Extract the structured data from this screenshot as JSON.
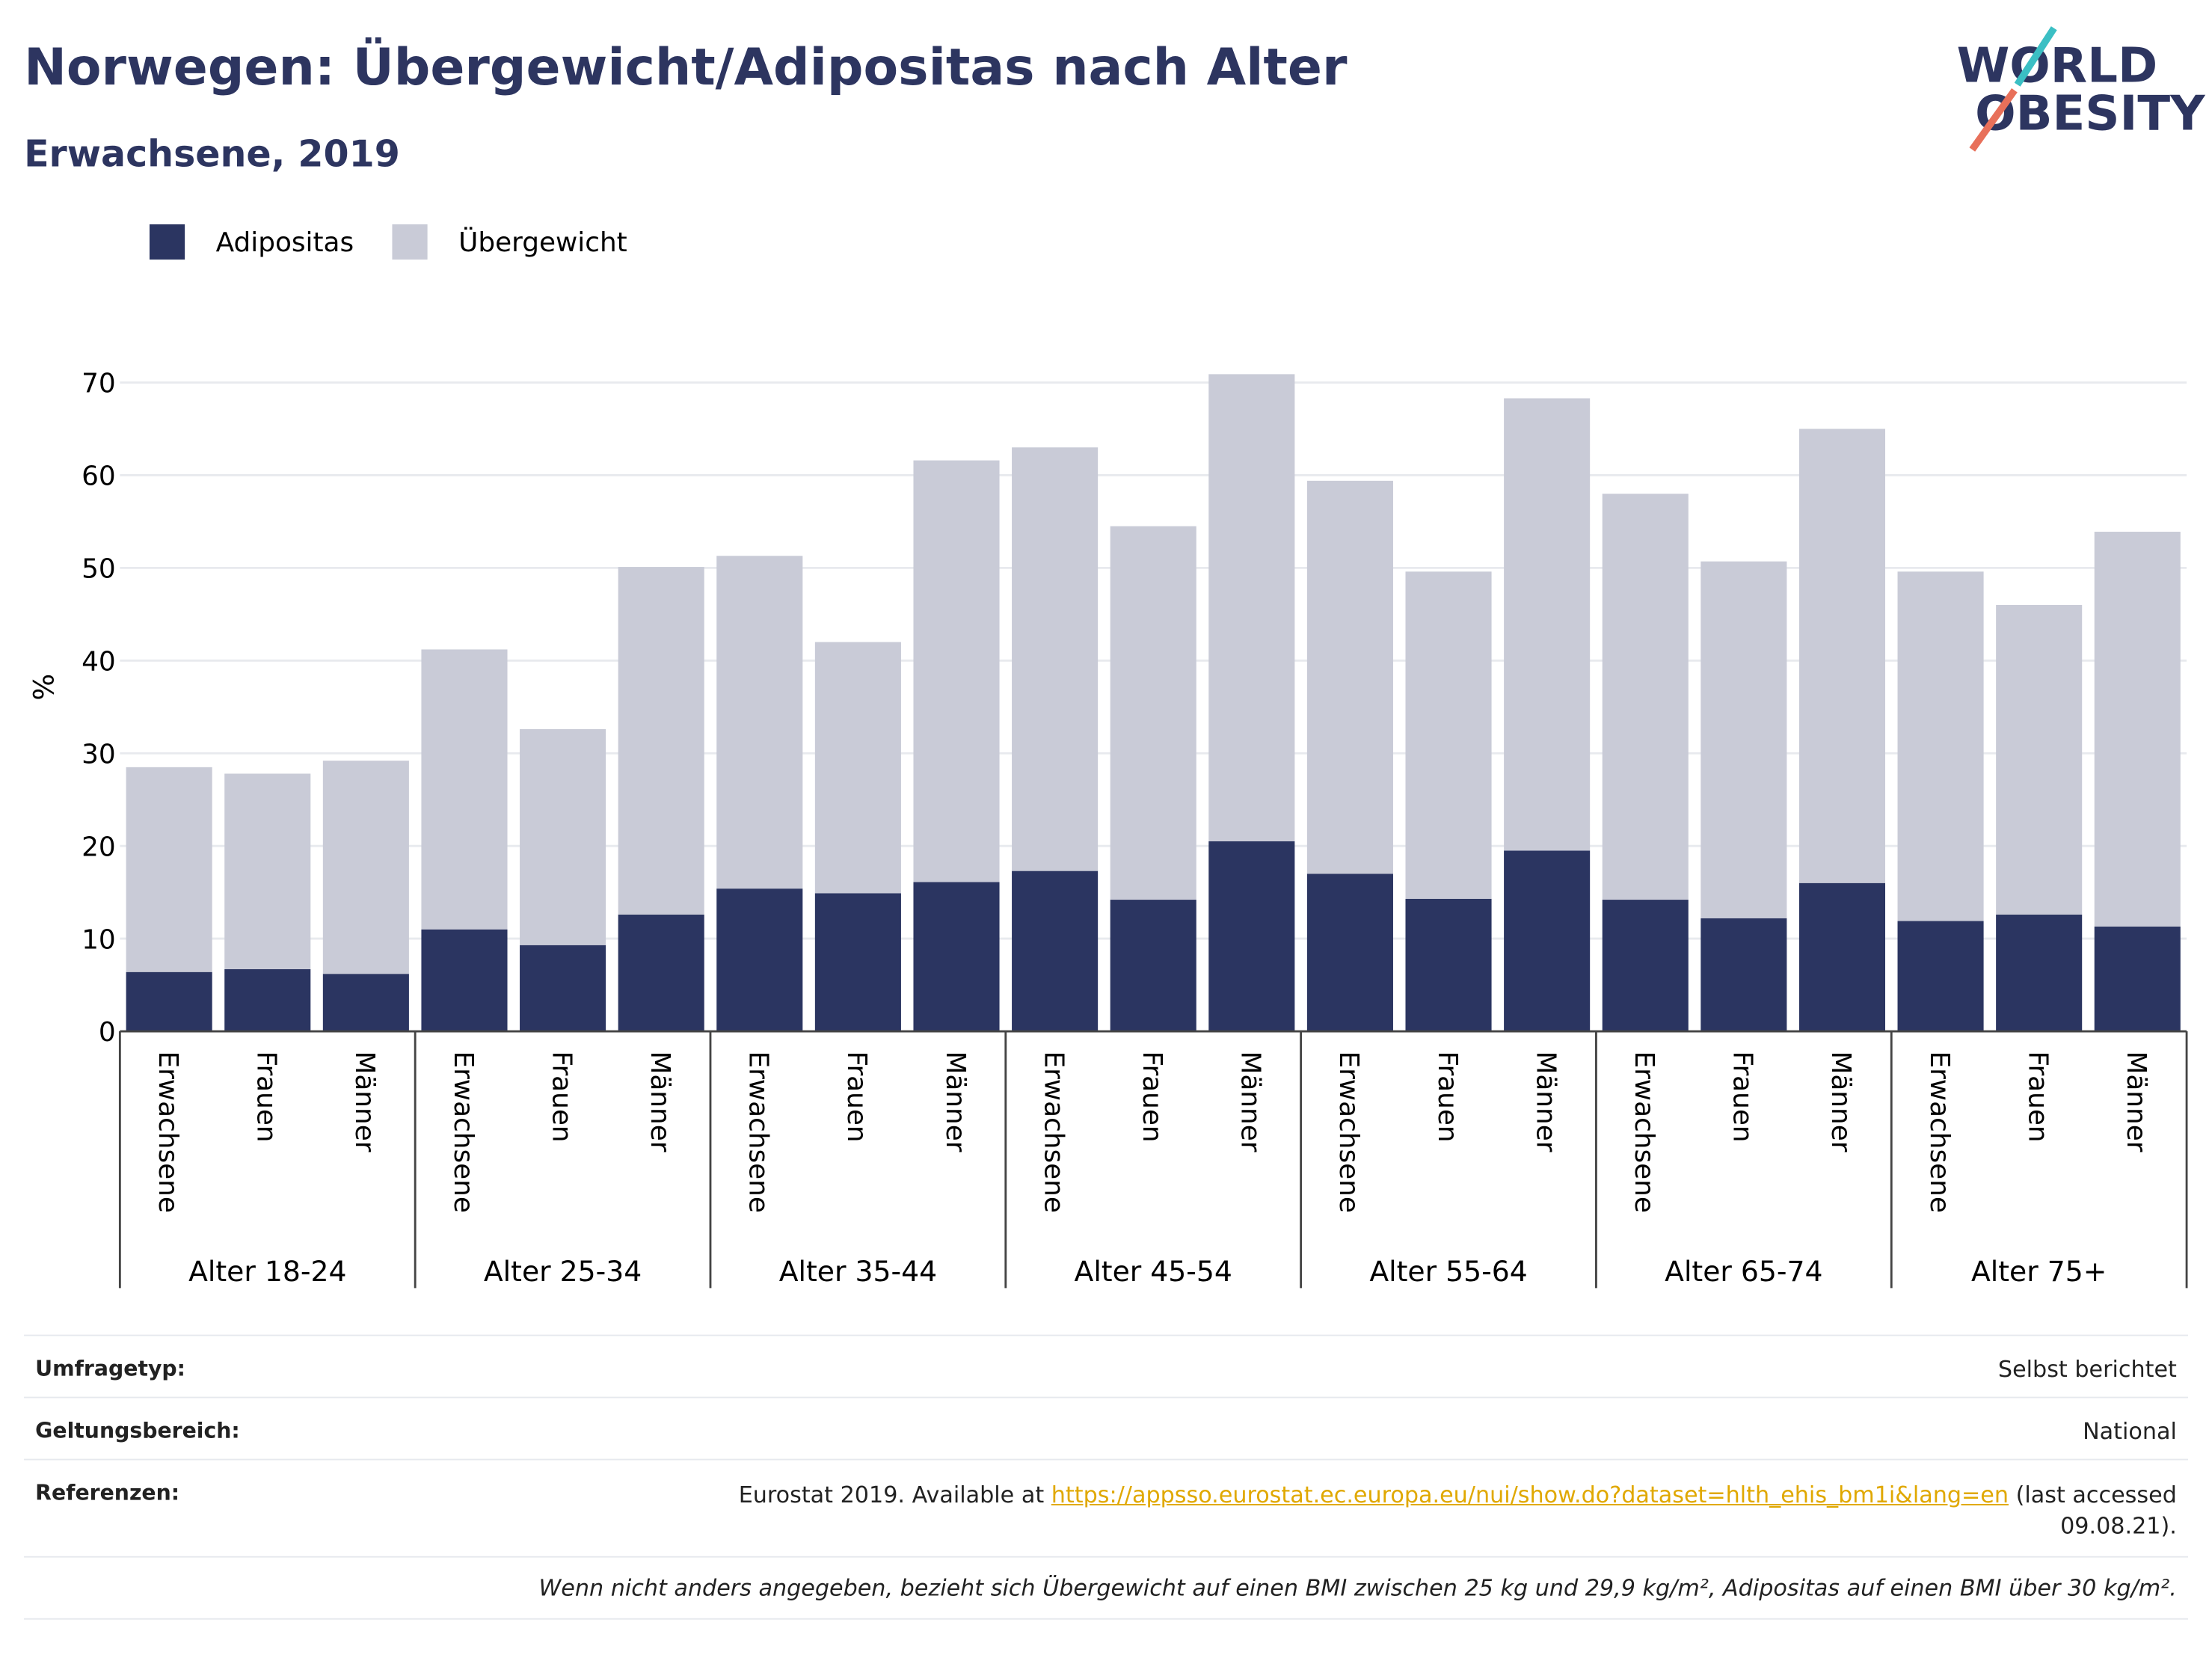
{
  "chart_data": {
    "type": "stacked_bar",
    "title": "Norwegen: Übergewicht/Adipositas nach Alter",
    "subtitle": "Erwachsene, 2019",
    "ylabel": "%",
    "logo": [
      "WORLD",
      "OBESITY"
    ],
    "groups": [
      {
        "name": "Alter 18-24",
        "categories": [
          "Erwachsene",
          "Frauen",
          "Männer"
        ]
      },
      {
        "name": "Alter 25-34",
        "categories": [
          "Erwachsene",
          "Frauen",
          "Männer"
        ]
      },
      {
        "name": "Alter 35-44",
        "categories": [
          "Erwachsene",
          "Frauen",
          "Männer"
        ]
      },
      {
        "name": "Alter 45-54",
        "categories": [
          "Erwachsene",
          "Frauen",
          "Männer"
        ]
      },
      {
        "name": "Alter 55-64",
        "categories": [
          "Erwachsene",
          "Frauen",
          "Männer"
        ]
      },
      {
        "name": "Alter 65-74",
        "categories": [
          "Erwachsene",
          "Frauen",
          "Männer"
        ]
      },
      {
        "name": "Alter 75+",
        "categories": [
          "Erwachsene",
          "Frauen",
          "Männer"
        ]
      }
    ],
    "series": [
      {
        "name": "Adipositas",
        "color": "#2b3561",
        "values": [
          6.4,
          6.7,
          6.2,
          11.0,
          9.3,
          12.6,
          15.4,
          14.9,
          16.1,
          17.3,
          14.2,
          20.5,
          17.0,
          14.3,
          19.5,
          14.2,
          12.2,
          16.0,
          11.9,
          12.6,
          11.3
        ]
      },
      {
        "name": "Übergewicht",
        "color": "#c9cbd7",
        "values": [
          22.1,
          21.1,
          23.0,
          30.2,
          23.3,
          37.5,
          35.9,
          27.1,
          45.5,
          45.7,
          40.3,
          50.4,
          42.4,
          35.3,
          48.8,
          43.8,
          38.5,
          49.0,
          37.7,
          33.4,
          42.6
        ]
      }
    ],
    "ylim": [
      0,
      72
    ],
    "yticks": [
      0,
      10,
      20,
      30,
      40,
      50,
      60,
      70
    ],
    "grid": true,
    "legend": "top-left"
  },
  "footer": {
    "rows": [
      {
        "label": "Umfragetyp:",
        "value": "Selbst berichtet"
      },
      {
        "label": "Geltungsbereich:",
        "value": "National"
      }
    ],
    "reference_label": "Referenzen:",
    "reference_prefix": "Eurostat 2019. Available at",
    "reference_link": "https://appsso.eurostat.ec.europa.eu/nui/show.do?dataset=hlth_ehis_bm1i&lang=en",
    "reference_suffix": "(last accessed 09.08.21).",
    "note": "Wenn nicht anders angegeben, bezieht sich Übergewicht auf einen BMI zwischen 25 kg und 29,9 kg/m², Adipositas auf einen BMI über 30 kg/m²."
  }
}
